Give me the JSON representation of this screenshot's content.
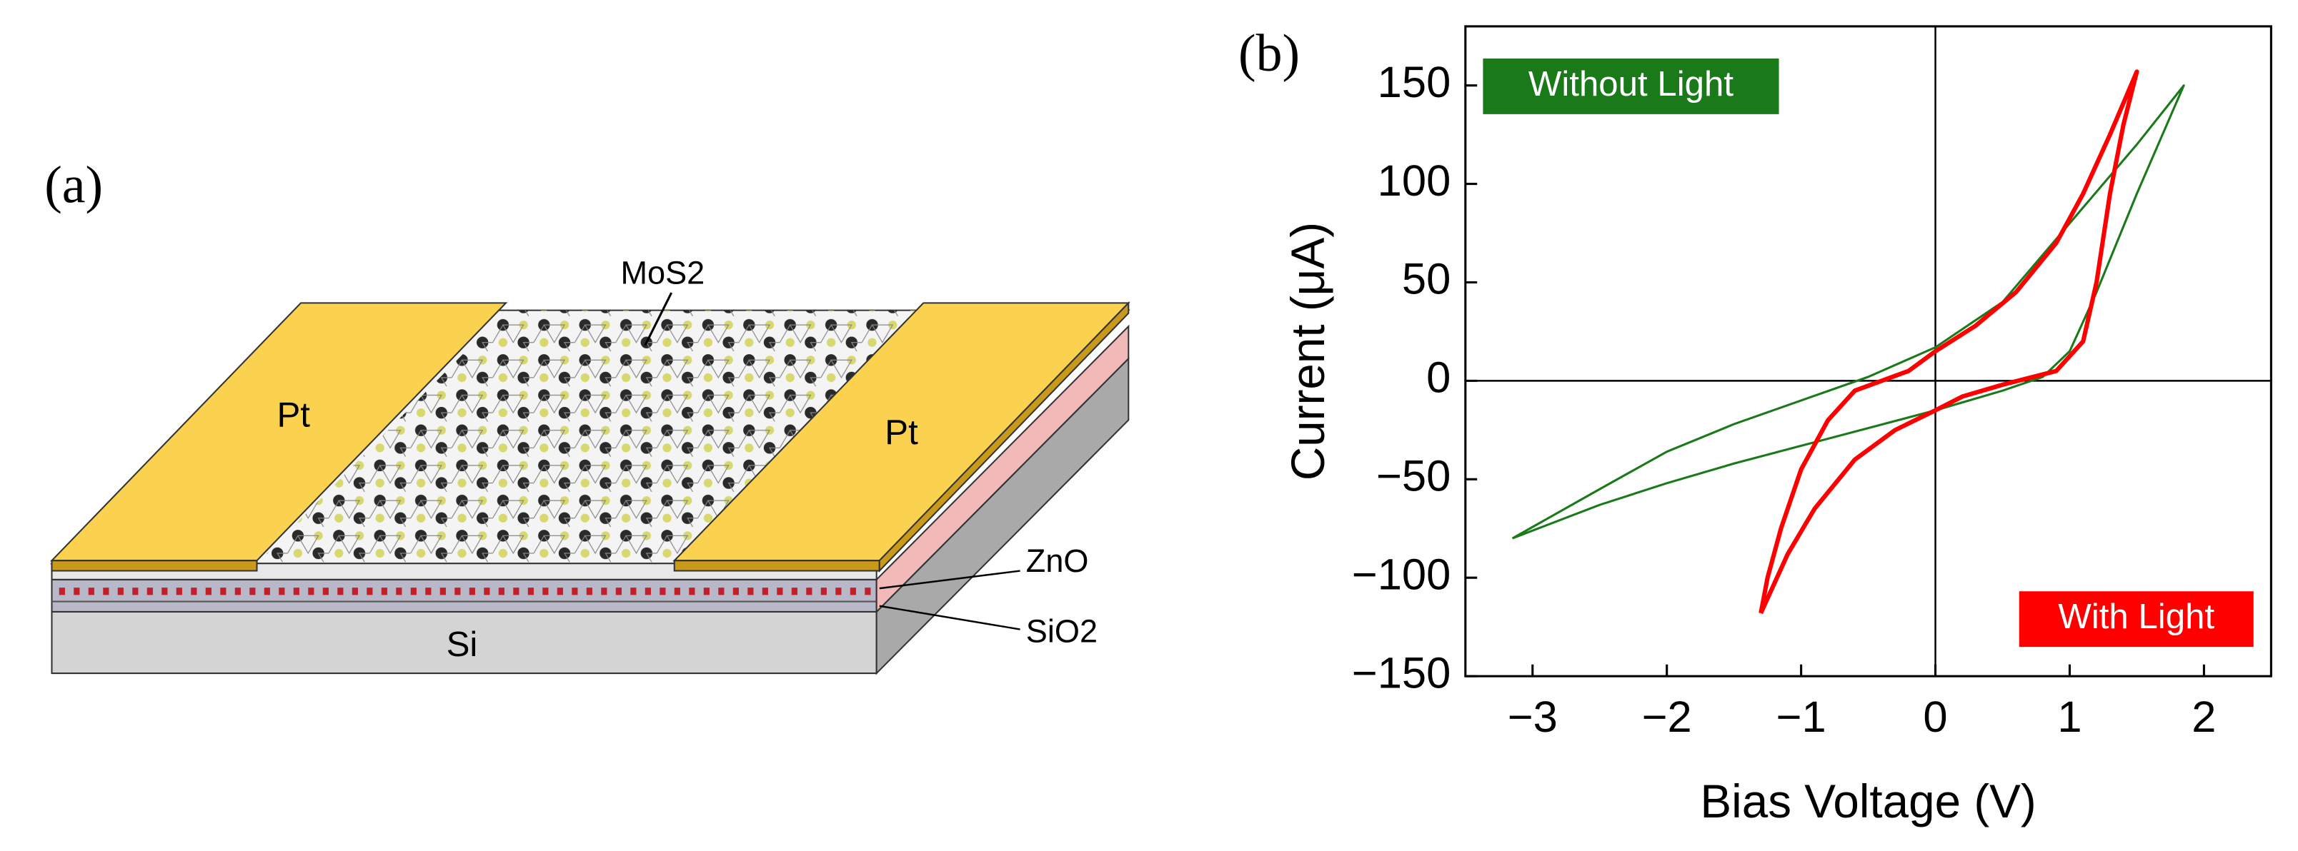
{
  "panel_a": {
    "label": "(a)",
    "labels": {
      "mos2": "MoS2",
      "pt_left": "Pt",
      "pt_right": "Pt",
      "zno": "ZnO",
      "sio2": "SiO2",
      "si": "Si"
    }
  },
  "chart_data": {
    "type": "line",
    "panel_label": "(b)",
    "x_label": "Bias Voltage (V)",
    "y_label": "Current (μA)",
    "xlim": [
      -3.5,
      2.5
    ],
    "xticks": [
      {
        "value": -3,
        "label": "−3"
      },
      {
        "value": -2,
        "label": "−2"
      },
      {
        "value": -1,
        "label": "−1"
      },
      0,
      1,
      2
    ],
    "ylim": [
      -150,
      180
    ],
    "yticks": [
      {
        "value": -150,
        "label": "−150"
      },
      {
        "value": -100,
        "label": "−100"
      },
      {
        "value": -50,
        "label": "−50"
      },
      0,
      50,
      100,
      150
    ],
    "zero_lines": true,
    "series": [
      {
        "name": "Without Light",
        "color": "#1a7a1a",
        "legend_corner": "top-left",
        "line_width": 1.5,
        "x": [
          -3.15,
          -2.5,
          -2,
          -1.5,
          -1,
          -0.5,
          0,
          0.5,
          0.8,
          1,
          1.2,
          1.5,
          1.85,
          1.5,
          1,
          0.5,
          0,
          -0.5,
          -1,
          -1.5,
          -2,
          -2.5,
          -3.15
        ],
        "values": [
          -80,
          -63,
          -52,
          -42,
          -33,
          -24,
          -15,
          -5,
          2,
          15,
          45,
          95,
          150,
          120,
          80,
          40,
          17,
          2,
          -10,
          -22,
          -36,
          -55,
          -80
        ]
      },
      {
        "name": "With Light",
        "color": "#ff0000",
        "legend_corner": "bottom-right",
        "line_width": 3,
        "x": [
          -1.3,
          -1.25,
          -1.15,
          -1,
          -0.8,
          -0.6,
          -0.4,
          -0.2,
          0,
          0.3,
          0.6,
          0.9,
          1.1,
          1.3,
          1.5,
          1.4,
          1.3,
          1.2,
          1.1,
          0.9,
          0.5,
          0.2,
          0,
          -0.3,
          -0.6,
          -0.9,
          -1.1,
          -1.3
        ],
        "values": [
          -118,
          -100,
          -75,
          -45,
          -20,
          -5,
          0,
          5,
          15,
          28,
          45,
          70,
          95,
          125,
          157,
          130,
          95,
          50,
          20,
          5,
          -2,
          -8,
          -15,
          -25,
          -40,
          -65,
          -88,
          -118
        ]
      }
    ]
  }
}
